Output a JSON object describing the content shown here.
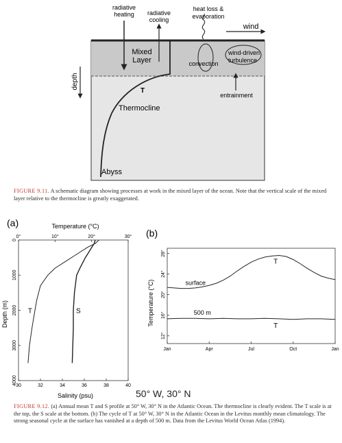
{
  "fig911": {
    "labels": {
      "radiative_heating": [
        "radiative",
        "heating"
      ],
      "radiative_cooling": [
        "radiative",
        "cooling"
      ],
      "heat_loss": [
        "heat loss &",
        "evaporation"
      ],
      "wind": "wind",
      "mixed_layer": [
        "Mixed",
        "Layer"
      ],
      "convection": "convection",
      "wind_turbulence": [
        "wind-driven",
        "turbulence"
      ],
      "depth": "depth",
      "T": "T",
      "thermocline": "Thermocline",
      "entrainment": "entrainment",
      "abyss": "Abyss"
    },
    "caption": {
      "label": "FIGURE 9.11.",
      "text": "A schematic diagram showing processes at work in the mixed layer of the ocean. Note that the vertical scale of the mixed layer relative to the thermocline is greatly exaggerated."
    }
  },
  "fig912": {
    "panel_a": "(a)",
    "panel_b": "(b)",
    "coordinate": "50° W, 30° N",
    "caption": {
      "label": "FIGURE 9.12.",
      "text": "(a) Annual mean T and S profile at 50° W, 30° N in the Atlantic Ocean. The thermocline is clearly evident. The T scale is at the top, the S scale at the bottom. (b) The cycle of T at 50° W, 30° N in the Atlantic Ocean in the Levitus monthly mean climatology. The strong seasonal cycle at the surface has vanished at a depth of 500 m. Data from the Levitus World Ocean Atlas (1994)."
    }
  },
  "chart_data": [
    {
      "type": "line",
      "panel": "(a)",
      "title": "",
      "top_axis": {
        "label": "Temperature (°C)",
        "ticks": [
          "0°",
          "10°",
          "20°",
          "30°"
        ],
        "range": [
          0,
          30
        ]
      },
      "bottom_axis": {
        "label": "Salinity (psu)",
        "ticks": [
          "30",
          "32",
          "34",
          "36",
          "38",
          "40"
        ],
        "range": [
          30,
          40
        ]
      },
      "y_axis": {
        "label": "Depth (m)",
        "ticks": [
          "0",
          "1000",
          "2000",
          "3000",
          "4000"
        ],
        "range": [
          4000,
          0
        ],
        "inverted": true
      },
      "series": [
        {
          "name": "T",
          "axis": "top",
          "points": [
            [
              22,
              0
            ],
            [
              21,
              100
            ],
            [
              19,
              200
            ],
            [
              16,
              400
            ],
            [
              13,
              600
            ],
            [
              10,
              800
            ],
            [
              8,
              1000
            ],
            [
              6,
              1300
            ],
            [
              5,
              1700
            ],
            [
              4.5,
              2000
            ],
            [
              3.7,
              2500
            ],
            [
              3,
              3000
            ],
            [
              2.6,
              3500
            ]
          ]
        },
        {
          "name": "S",
          "axis": "bottom",
          "points": [
            [
              37,
              0
            ],
            [
              36.9,
              100
            ],
            [
              36.6,
              250
            ],
            [
              36.1,
              500
            ],
            [
              35.6,
              800
            ],
            [
              35.3,
              1000
            ],
            [
              35.1,
              1500
            ],
            [
              35.0,
              2000
            ],
            [
              35.0,
              2500
            ],
            [
              34.95,
              3000
            ],
            [
              34.9,
              3500
            ]
          ]
        }
      ],
      "grid": false
    },
    {
      "type": "line",
      "panel": "(b)",
      "title": "",
      "xlabel": "",
      "ylabel": "Temperature (°C)",
      "x_ticks": [
        "Jan",
        "Apr",
        "Jul",
        "Oct",
        "Jan"
      ],
      "xlim": [
        0,
        12
      ],
      "y_ticks": [
        "12°",
        "16°",
        "20°",
        "24°",
        "28°"
      ],
      "ylim": [
        10.5,
        29
      ],
      "series": [
        {
          "name": "surface",
          "label": "T",
          "x": [
            0,
            0.5,
            1,
            1.5,
            2,
            2.5,
            3,
            3.5,
            4,
            4.5,
            5,
            5.5,
            6,
            6.5,
            7,
            7.5,
            8,
            8.5,
            9,
            9.5,
            10,
            10.5,
            11,
            11.5,
            12
          ],
          "y": [
            21.4,
            21.3,
            21.2,
            21.2,
            21.3,
            21.5,
            21.8,
            22.2,
            22.8,
            23.6,
            24.6,
            25.5,
            26.3,
            26.9,
            27.3,
            27.5,
            27.6,
            27.4,
            26.8,
            26.0,
            25.1,
            24.3,
            23.6,
            23.2,
            22.9
          ]
        },
        {
          "name": "500 m",
          "label": "T",
          "x": [
            0,
            1,
            2,
            3,
            4,
            5,
            6,
            7,
            8,
            9,
            10,
            11,
            12
          ],
          "y": [
            15.3,
            15.4,
            15.4,
            15.3,
            15.4,
            15.3,
            15.3,
            15.4,
            15.3,
            15.2,
            15.3,
            15.3,
            15.2
          ]
        }
      ],
      "grid": false
    }
  ]
}
